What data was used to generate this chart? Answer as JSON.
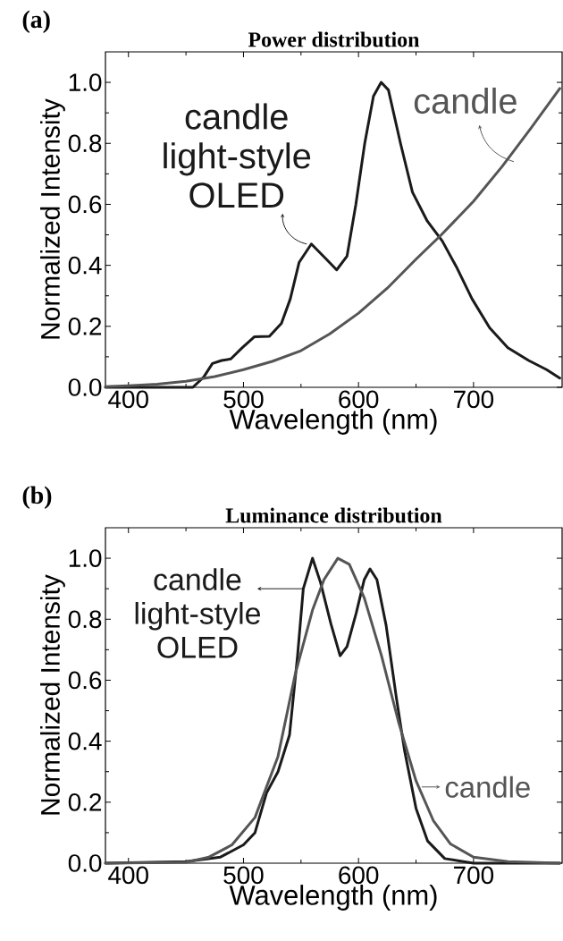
{
  "chart_data": [
    {
      "type": "line",
      "title": "Power distribution",
      "xlabel": "Wavelength (nm)",
      "ylabel": "Normalized Intensity",
      "annotations": [
        "(a)"
      ],
      "xlim": [
        380,
        777
      ],
      "ylim": [
        0,
        1.1
      ],
      "xticks": [
        400,
        500,
        600,
        700
      ],
      "yticks": [
        {
          "value": 0,
          "label": "0.0"
        },
        {
          "value": 0.2,
          "label": "0.2"
        },
        {
          "value": 0.4,
          "label": "0.4"
        },
        {
          "value": 0.6,
          "label": "0.6"
        },
        {
          "value": 0.8,
          "label": "0.8"
        },
        {
          "value": 1,
          "label": "1.0"
        }
      ],
      "series": [
        {
          "name": "candle light-style OLED",
          "color": "#1a1a1a",
          "x": [
            380,
            440,
            456,
            465.5,
            473,
            481,
            489,
            499,
            509.6,
            522.5,
            533,
            540.7,
            548.4,
            559,
            572,
            581,
            590,
            597.7,
            605.4,
            613,
            619.7,
            626,
            636.5,
            646.9,
            659.8,
            672.8,
            685.8,
            698.7,
            714,
            729.8,
            747.9,
            763.5,
            775
          ],
          "values": [
            0,
            0,
            0,
            0.034,
            0.078,
            0.088,
            0.093,
            0.13,
            0.166,
            0.167,
            0.21,
            0.29,
            0.41,
            0.47,
            0.42,
            0.385,
            0.43,
            0.6,
            0.8,
            0.955,
            1.0,
            0.975,
            0.8,
            0.64,
            0.545,
            0.48,
            0.39,
            0.29,
            0.195,
            0.13,
            0.088,
            0.058,
            0.03
          ]
        },
        {
          "name": "candle",
          "color": "#555555",
          "x": [
            380,
            400,
            425,
            450,
            475,
            500,
            525,
            550,
            575,
            600,
            625,
            650,
            672,
            700,
            725,
            750,
            775
          ],
          "values": [
            0.002,
            0.005,
            0.01,
            0.02,
            0.035,
            0.058,
            0.085,
            0.12,
            0.175,
            0.243,
            0.325,
            0.42,
            0.5,
            0.61,
            0.725,
            0.85,
            0.98
          ]
        }
      ]
    },
    {
      "type": "line",
      "title": "Luminance distribution",
      "xlabel": "Wavelength (nm)",
      "ylabel": "Normalized Intensity",
      "annotations": [
        "(b)"
      ],
      "xlim": [
        380,
        777
      ],
      "ylim": [
        0,
        1.1
      ],
      "xticks": [
        400,
        500,
        600,
        700
      ],
      "yticks": [
        {
          "value": 0,
          "label": "0.0"
        },
        {
          "value": 0.2,
          "label": "0.2"
        },
        {
          "value": 0.4,
          "label": "0.4"
        },
        {
          "value": 0.6,
          "label": "0.6"
        },
        {
          "value": 0.8,
          "label": "0.8"
        },
        {
          "value": 1,
          "label": "1.0"
        }
      ],
      "series": [
        {
          "name": "candle light-style OLED",
          "color": "#1a1a1a",
          "x": [
            380,
            450,
            480,
            500,
            510,
            520,
            530,
            540,
            547,
            552,
            560,
            567,
            576,
            584,
            590,
            598,
            605,
            610,
            616,
            624,
            633,
            640,
            650,
            660,
            675,
            700,
            775
          ],
          "values": [
            0,
            0.005,
            0.02,
            0.06,
            0.1,
            0.23,
            0.3,
            0.42,
            0.68,
            0.9,
            1.0,
            0.92,
            0.785,
            0.68,
            0.71,
            0.82,
            0.93,
            0.965,
            0.93,
            0.78,
            0.54,
            0.37,
            0.18,
            0.073,
            0.015,
            0,
            0
          ]
        },
        {
          "name": "candle",
          "color": "#555555",
          "x": [
            380,
            450,
            470,
            490,
            510,
            530,
            545,
            560,
            570,
            582,
            592,
            605,
            620,
            635,
            650,
            665,
            680,
            700,
            730,
            775
          ],
          "values": [
            0,
            0.003,
            0.02,
            0.06,
            0.15,
            0.35,
            0.62,
            0.83,
            0.93,
            1.0,
            0.98,
            0.87,
            0.68,
            0.46,
            0.27,
            0.14,
            0.063,
            0.02,
            0.005,
            0
          ]
        }
      ]
    }
  ]
}
